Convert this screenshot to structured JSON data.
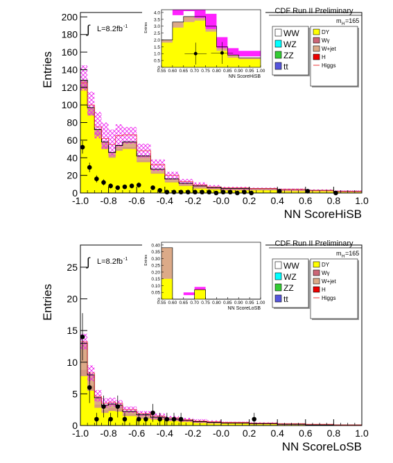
{
  "chart_data": [
    {
      "type": "bar",
      "header": "CDF Run II Preliminary",
      "lumi": "L=8.2fb",
      "lumi_sup": "-1",
      "integral": "∫",
      "mass": "m",
      "mass_sub": "H",
      "mass_val": "=165",
      "xlabel": "NN ScoreHiSB",
      "ylabel": "Entries",
      "xlim": [
        -1.0,
        1.0
      ],
      "ylim": [
        0,
        205
      ],
      "x_ticks": [
        "-1.0",
        "-0.8",
        "-0.6",
        "-0.4",
        "-0.2",
        "-0.0",
        "0.2",
        "0.4",
        "0.6",
        "0.8",
        "1.0"
      ],
      "y_ticks": [
        "0",
        "20",
        "40",
        "60",
        "80",
        "100",
        "120",
        "140",
        "160",
        "180",
        "200"
      ],
      "bin_edges": [
        -1.0,
        -0.95,
        -0.9,
        -0.85,
        -0.8,
        -0.75,
        -0.7,
        -0.6,
        -0.5,
        -0.4,
        -0.3,
        -0.2,
        -0.1,
        0.0,
        0.2,
        0.4,
        0.6,
        0.8,
        1.0
      ],
      "series": [
        {
          "name": "DY",
          "values": [
            118,
            88,
            65,
            50,
            40,
            48,
            50,
            35,
            22,
            12,
            8,
            5,
            4,
            3,
            3,
            2,
            2,
            1
          ]
        },
        {
          "name": "W+jet",
          "values": [
            4,
            3,
            3,
            3,
            2,
            2,
            2,
            2,
            1,
            1,
            1,
            1,
            1,
            1,
            1,
            1,
            0.5,
            0.5
          ]
        },
        {
          "name": "Total",
          "values": [
            128,
            97,
            72,
            58,
            46,
            54,
            58,
            42,
            27,
            16,
            11,
            8,
            6,
            5,
            5,
            4,
            3,
            2
          ]
        },
        {
          "name": "Higgs",
          "values": [
            125,
            100,
            75,
            62,
            55,
            65,
            66,
            48,
            32,
            20,
            13,
            9,
            7,
            6,
            5,
            4,
            3,
            2
          ]
        }
      ],
      "band": {
        "lo": [
          116,
          88,
          62,
          50,
          42,
          52,
          56,
          40,
          25,
          15,
          10,
          7,
          5,
          4,
          4,
          3,
          2,
          1
        ],
        "hi": [
          145,
          115,
          92,
          80,
          72,
          78,
          75,
          56,
          38,
          24,
          16,
          12,
          9,
          7,
          6,
          5,
          4,
          3
        ]
      },
      "data_points": {
        "x": [
          -0.985,
          -0.935,
          -0.885,
          -0.835,
          -0.785,
          -0.735,
          -0.685,
          -0.635,
          -0.585,
          -0.485,
          -0.435,
          -0.385,
          -0.335,
          -0.285,
          -0.235,
          -0.185,
          -0.135,
          -0.085,
          -0.035,
          0.015,
          0.065,
          0.115,
          0.165,
          0.215,
          0.415,
          0.615,
          0.815
        ],
        "y": [
          52,
          29,
          16,
          12,
          8,
          6,
          7,
          8,
          9,
          6,
          3,
          1,
          1,
          1,
          1,
          1,
          1,
          1,
          0,
          1,
          1,
          0,
          1,
          0,
          2,
          2,
          0
        ]
      },
      "legend_left": [
        {
          "label": "WW",
          "color": "#ffffff"
        },
        {
          "label": "WZ",
          "color": "#00ffff"
        },
        {
          "label": "ZZ",
          "color": "#33cc33"
        },
        {
          "label": "tt",
          "color": "#5555dd"
        }
      ],
      "legend_right": [
        {
          "label": "DY",
          "color": "#ffff00"
        },
        {
          "label": "Wγ",
          "color": "#cc6677"
        },
        {
          "label": "W+jet",
          "color": "#dcaa88"
        },
        {
          "label": "H",
          "color": "#ee0000"
        },
        {
          "label": "Higgs",
          "color": "#ee3333"
        }
      ],
      "inset": {
        "xlabel": "NN ScoreHiSB",
        "ylabel": "Entries",
        "xlim": [
          0.55,
          1.0
        ],
        "ylim": [
          0,
          4.2
        ],
        "x_ticks": [
          "0.55",
          "0.60",
          "0.65",
          "0.70",
          "0.75",
          "0.80",
          "0.85",
          "0.90",
          "0.95",
          "1.00"
        ],
        "y_ticks": [
          "0",
          "0.5",
          "1.0",
          "1.5",
          "2.0",
          "2.5",
          "3.0",
          "3.5",
          "4.0"
        ],
        "bin_edges": [
          0.55,
          0.6,
          0.65,
          0.7,
          0.75,
          0.8,
          0.85,
          0.9,
          1.0
        ],
        "total": [
          2.0,
          3.3,
          3.7,
          3.7,
          3.0,
          1.5,
          0.9,
          0.7
        ],
        "dy": [
          1.8,
          2.9,
          3.3,
          3.4,
          2.6,
          1.2,
          0.7,
          0.6
        ],
        "band_lo": [
          2.0,
          3.8,
          4.1,
          3.6,
          2.8,
          1.4,
          0.9,
          0.8
        ],
        "band_hi": [
          2.0,
          4.2,
          4.2,
          4.2,
          3.9,
          2.2,
          1.4,
          1.2
        ],
        "data_x": [
          0.705,
          0.825
        ],
        "data_y": [
          1.0,
          1.05
        ]
      }
    },
    {
      "type": "bar",
      "header": "CDF Run II Preliminary",
      "lumi": "L=8.2fb",
      "lumi_sup": "-1",
      "integral": "∫",
      "mass": "m",
      "mass_sub": "H",
      "mass_val": "=165",
      "xlabel": "NN ScoreLoSB",
      "ylabel": "Entries",
      "xlim": [
        -1.0,
        1.0
      ],
      "ylim": [
        0,
        28.5
      ],
      "x_ticks": [
        "-1.0",
        "-0.8",
        "-0.6",
        "-0.4",
        "-0.2",
        "-0.0",
        "0.2",
        "0.4",
        "0.6",
        "0.8",
        "1.0"
      ],
      "y_ticks": [
        "0",
        "5",
        "10",
        "15",
        "20",
        "25"
      ],
      "bin_edges": [
        -1.0,
        -0.95,
        -0.9,
        -0.85,
        -0.8,
        -0.75,
        -0.7,
        -0.6,
        -0.5,
        -0.4,
        -0.3,
        -0.2,
        -0.1,
        0.0,
        0.2,
        0.4,
        0.6,
        0.8,
        1.0
      ],
      "series": [
        {
          "name": "DY",
          "values": [
            7.8,
            5.5,
            2.8,
            2.0,
            2.3,
            2.2,
            1.5,
            1.1,
            0.9,
            0.7,
            0.6,
            0.4,
            0.3,
            0.3,
            0.2,
            0.1,
            0.1,
            0.1
          ]
        },
        {
          "name": "W+jet",
          "values": [
            1.0,
            0.8,
            0.5,
            0.4,
            0.5,
            0.5,
            0.3,
            0.2,
            0.2,
            0.1,
            0.1,
            0.1,
            0.1,
            0.1,
            0.1,
            0,
            0,
            0
          ]
        },
        {
          "name": "Total",
          "values": [
            13.0,
            8.0,
            4.4,
            3.2,
            3.4,
            3.2,
            2.2,
            1.7,
            1.3,
            1.0,
            0.8,
            0.6,
            0.5,
            0.4,
            0.3,
            0.2,
            0.1,
            0.1
          ]
        },
        {
          "name": "Higgs",
          "values": [
            13.2,
            8.3,
            4.6,
            3.5,
            3.7,
            3.5,
            2.5,
            1.9,
            1.5,
            1.2,
            0.9,
            0.7,
            0.6,
            0.5,
            0.4,
            0.3,
            0.2,
            0.1
          ]
        }
      ],
      "band": {
        "lo": [
          12.0,
          7.0,
          3.8,
          2.8,
          3.0,
          2.8,
          2.0,
          1.5,
          1.1,
          0.8,
          0.6,
          0.5,
          0.4,
          0.3,
          0.2,
          0.1,
          0.1,
          0.0
        ],
        "hi": [
          14.5,
          9.5,
          5.6,
          4.3,
          4.4,
          4.0,
          3.0,
          2.3,
          1.9,
          1.5,
          1.2,
          1.0,
          0.8,
          0.6,
          0.5,
          0.3,
          0.2,
          0.1
        ]
      },
      "data_points": {
        "x": [
          -0.985,
          -0.935,
          -0.885,
          -0.835,
          -0.785,
          -0.735,
          -0.685,
          -0.585,
          -0.535,
          -0.485,
          -0.435,
          -0.385,
          -0.335,
          -0.285,
          0.235
        ],
        "y": [
          14,
          6,
          1,
          3,
          1,
          3,
          1,
          1,
          1,
          2,
          1,
          1,
          1,
          1,
          1
        ]
      },
      "legend_left": [
        {
          "label": "WW",
          "color": "#ffffff"
        },
        {
          "label": "WZ",
          "color": "#00ffff"
        },
        {
          "label": "ZZ",
          "color": "#33cc33"
        },
        {
          "label": "tt",
          "color": "#5555dd"
        }
      ],
      "legend_right": [
        {
          "label": "DY",
          "color": "#ffff00"
        },
        {
          "label": "Wγ",
          "color": "#cc6677"
        },
        {
          "label": "W+jet",
          "color": "#dcaa88"
        },
        {
          "label": "H",
          "color": "#ee0000"
        },
        {
          "label": "Higgs",
          "color": "#ee3333"
        }
      ],
      "inset": {
        "xlabel": "NN ScoreLoSB",
        "ylabel": "Entries",
        "xlim": [
          0.55,
          1.0
        ],
        "ylim": [
          0,
          0.42
        ],
        "x_ticks": [
          "0.55",
          "0.60",
          "0.65",
          "0.70",
          "0.75",
          "0.80",
          "0.85",
          "0.90",
          "0.95",
          "1.00"
        ],
        "y_ticks": [
          "0",
          "0.05",
          "0.10",
          "0.15",
          "0.20",
          "0.25",
          "0.30",
          "0.35",
          "0.40"
        ],
        "bin_edges": [
          0.55,
          0.6,
          0.65,
          0.7,
          0.75,
          0.8,
          0.85,
          0.9,
          1.0
        ],
        "total": [
          0.38,
          0.0,
          0.0,
          0.07,
          0.0,
          0.0,
          0.0,
          0.0
        ],
        "dy": [
          0.15,
          0.0,
          0.0,
          0.07,
          0.0,
          0.0,
          0.0,
          0.0
        ],
        "wjet": [
          0.23,
          0.0,
          0.0,
          0.0,
          0.0,
          0.0,
          0.0,
          0.0
        ],
        "band_lo": [
          0.0,
          0.0,
          0.03,
          0.07,
          0.0,
          0.0,
          0.0,
          0.0
        ],
        "band_hi": [
          0.0,
          0.0,
          0.05,
          0.09,
          0.0,
          0.0,
          0.0,
          0.0
        ],
        "data_x": [],
        "data_y": []
      }
    }
  ]
}
